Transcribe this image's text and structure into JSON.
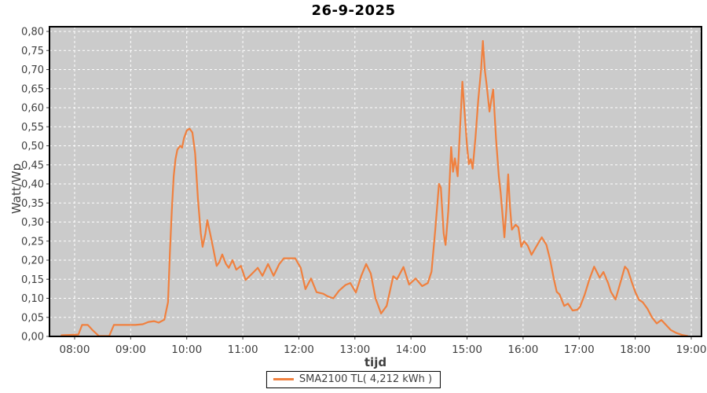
{
  "window": {
    "background": "#ffffff"
  },
  "chart_data": {
    "type": "line",
    "title": "26-9-2025",
    "xlabel": "tijd",
    "ylabel": "Watt/Wp",
    "plot_background": "#cbcbcb",
    "grid": {
      "show": true,
      "color": "#ffffff",
      "style": "dashed"
    },
    "axis_text_color": "#3f3f3f",
    "border_color": "#000000",
    "x_ticks": [
      "08:00",
      "09:00",
      "10:00",
      "11:00",
      "12:00",
      "13:00",
      "14:00",
      "15:00",
      "16:00",
      "17:00",
      "18:00",
      "19:00"
    ],
    "y_ticks": {
      "values": [
        0.0,
        0.05,
        0.1,
        0.15,
        0.2,
        0.25,
        0.3,
        0.35,
        0.4,
        0.45,
        0.5,
        0.55,
        0.6,
        0.65,
        0.7,
        0.75,
        0.8
      ],
      "labels": [
        "0,00",
        "0,05",
        "0,10",
        "0,15",
        "0,20",
        "0,25",
        "0,30",
        "0,35",
        "0,40",
        "0,45",
        "0,50",
        "0,55",
        "0,60",
        "0,65",
        "0,70",
        "0,75",
        "0,80"
      ]
    },
    "xlim_hours": [
      7.55,
      19.18
    ],
    "ylim": [
      0,
      0.8125
    ],
    "legend": {
      "label": "SMA2100 TL( 4,212 kWh )",
      "position": "bottom-center"
    },
    "series": [
      {
        "name": "SMA2100 TL( 4,212 kWh )",
        "color": "#F0803E",
        "points": [
          [
            "07:46",
            0.003
          ],
          [
            "07:55",
            0.004
          ],
          [
            "08:04",
            0.005
          ],
          [
            "08:08",
            0.03
          ],
          [
            "08:14",
            0.03
          ],
          [
            "08:19",
            0.017
          ],
          [
            "08:26",
            0.001
          ],
          [
            "08:37",
            0.001
          ],
          [
            "08:42",
            0.03
          ],
          [
            "08:55",
            0.03
          ],
          [
            "09:05",
            0.03
          ],
          [
            "09:13",
            0.032
          ],
          [
            "09:19",
            0.038
          ],
          [
            "09:25",
            0.04
          ],
          [
            "09:30",
            0.036
          ],
          [
            "09:36",
            0.044
          ],
          [
            "09:40",
            0.09
          ],
          [
            "09:42",
            0.22
          ],
          [
            "09:44",
            0.33
          ],
          [
            "09:46",
            0.42
          ],
          [
            "09:48",
            0.465
          ],
          [
            "09:50",
            0.49
          ],
          [
            "09:53",
            0.5
          ],
          [
            "09:55",
            0.495
          ],
          [
            "09:57",
            0.52
          ],
          [
            "10:00",
            0.54
          ],
          [
            "10:03",
            0.545
          ],
          [
            "10:06",
            0.535
          ],
          [
            "10:09",
            0.48
          ],
          [
            "10:12",
            0.36
          ],
          [
            "10:15",
            0.27
          ],
          [
            "10:17",
            0.235
          ],
          [
            "10:20",
            0.27
          ],
          [
            "10:22",
            0.305
          ],
          [
            "10:25",
            0.27
          ],
          [
            "10:28",
            0.235
          ],
          [
            "10:32",
            0.185
          ],
          [
            "10:35",
            0.195
          ],
          [
            "10:38",
            0.215
          ],
          [
            "10:42",
            0.19
          ],
          [
            "10:45",
            0.18
          ],
          [
            "10:49",
            0.2
          ],
          [
            "10:53",
            0.175
          ],
          [
            "10:58",
            0.185
          ],
          [
            "11:03",
            0.148
          ],
          [
            "11:08",
            0.16
          ],
          [
            "11:12",
            0.17
          ],
          [
            "11:16",
            0.18
          ],
          [
            "11:21",
            0.159
          ],
          [
            "11:27",
            0.19
          ],
          [
            "11:33",
            0.159
          ],
          [
            "11:39",
            0.19
          ],
          [
            "11:44",
            0.205
          ],
          [
            "11:56",
            0.205
          ],
          [
            "12:02",
            0.18
          ],
          [
            "12:07",
            0.124
          ],
          [
            "12:13",
            0.152
          ],
          [
            "12:19",
            0.116
          ],
          [
            "12:26",
            0.112
          ],
          [
            "12:31",
            0.105
          ],
          [
            "12:37",
            0.1
          ],
          [
            "12:43",
            0.12
          ],
          [
            "12:50",
            0.135
          ],
          [
            "12:55",
            0.14
          ],
          [
            "13:01",
            0.115
          ],
          [
            "13:07",
            0.16
          ],
          [
            "13:12",
            0.19
          ],
          [
            "13:17",
            0.165
          ],
          [
            "13:22",
            0.1
          ],
          [
            "13:28",
            0.06
          ],
          [
            "13:34",
            0.08
          ],
          [
            "13:41",
            0.158
          ],
          [
            "13:45",
            0.15
          ],
          [
            "13:52",
            0.182
          ],
          [
            "13:58",
            0.136
          ],
          [
            "14:05",
            0.152
          ],
          [
            "14:12",
            0.132
          ],
          [
            "14:18",
            0.14
          ],
          [
            "14:22",
            0.17
          ],
          [
            "14:26",
            0.28
          ],
          [
            "14:30",
            0.4
          ],
          [
            "14:32",
            0.39
          ],
          [
            "14:35",
            0.27
          ],
          [
            "14:37",
            0.24
          ],
          [
            "14:40",
            0.33
          ],
          [
            "14:43",
            0.497
          ],
          [
            "14:45",
            0.432
          ],
          [
            "14:47",
            0.467
          ],
          [
            "14:50",
            0.42
          ],
          [
            "14:52",
            0.52
          ],
          [
            "14:55",
            0.668
          ],
          [
            "14:57",
            0.6
          ],
          [
            "15:00",
            0.5
          ],
          [
            "15:02",
            0.452
          ],
          [
            "15:04",
            0.465
          ],
          [
            "15:06",
            0.44
          ],
          [
            "15:09",
            0.52
          ],
          [
            "15:12",
            0.62
          ],
          [
            "15:15",
            0.7
          ],
          [
            "15:17",
            0.775
          ],
          [
            "15:19",
            0.7
          ],
          [
            "15:21",
            0.66
          ],
          [
            "15:24",
            0.59
          ],
          [
            "15:26",
            0.62
          ],
          [
            "15:28",
            0.648
          ],
          [
            "15:31",
            0.52
          ],
          [
            "15:34",
            0.42
          ],
          [
            "15:36",
            0.378
          ],
          [
            "15:40",
            0.26
          ],
          [
            "15:42",
            0.33
          ],
          [
            "15:44",
            0.425
          ],
          [
            "15:46",
            0.34
          ],
          [
            "15:48",
            0.28
          ],
          [
            "15:52",
            0.293
          ],
          [
            "15:55",
            0.286
          ],
          [
            "15:58",
            0.235
          ],
          [
            "16:01",
            0.25
          ],
          [
            "16:05",
            0.238
          ],
          [
            "16:09",
            0.214
          ],
          [
            "16:14",
            0.235
          ],
          [
            "16:20",
            0.26
          ],
          [
            "16:25",
            0.24
          ],
          [
            "16:29",
            0.2
          ],
          [
            "16:33",
            0.15
          ],
          [
            "16:36",
            0.117
          ],
          [
            "16:39",
            0.11
          ],
          [
            "16:44",
            0.08
          ],
          [
            "16:48",
            0.086
          ],
          [
            "16:53",
            0.068
          ],
          [
            "16:58",
            0.07
          ],
          [
            "17:01",
            0.078
          ],
          [
            "17:06",
            0.11
          ],
          [
            "17:11",
            0.15
          ],
          [
            "17:16",
            0.183
          ],
          [
            "17:22",
            0.154
          ],
          [
            "17:26",
            0.169
          ],
          [
            "17:31",
            0.14
          ],
          [
            "17:34",
            0.117
          ],
          [
            "17:39",
            0.097
          ],
          [
            "17:44",
            0.14
          ],
          [
            "17:49",
            0.183
          ],
          [
            "17:52",
            0.175
          ],
          [
            "17:56",
            0.145
          ],
          [
            "18:00",
            0.117
          ],
          [
            "18:04",
            0.096
          ],
          [
            "18:08",
            0.09
          ],
          [
            "18:13",
            0.073
          ],
          [
            "18:18",
            0.05
          ],
          [
            "18:23",
            0.034
          ],
          [
            "18:28",
            0.043
          ],
          [
            "18:33",
            0.03
          ],
          [
            "18:38",
            0.017
          ],
          [
            "18:44",
            0.009
          ],
          [
            "18:50",
            0.004
          ],
          [
            "18:56",
            0.001
          ]
        ]
      }
    ]
  }
}
